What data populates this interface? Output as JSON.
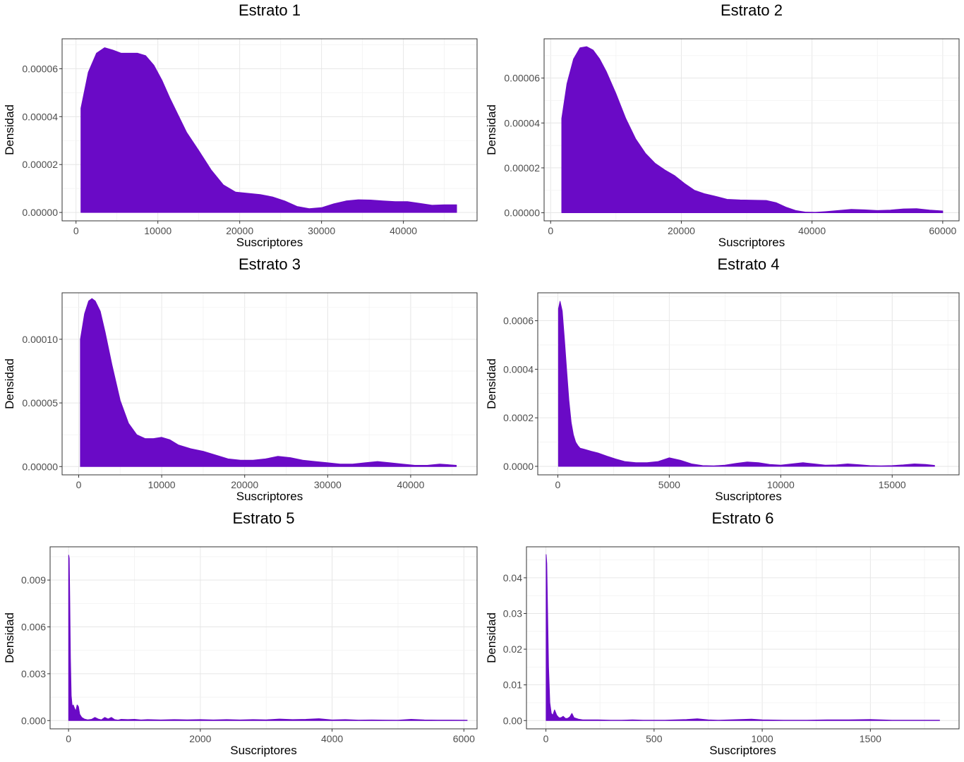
{
  "chart_data": [
    {
      "type": "area",
      "title": "Estrato 1",
      "xlabel": "Suscriptores",
      "ylabel": "Densidad",
      "fill_color": "#6a0ac6",
      "grid": true,
      "xlim": [
        -1700,
        49000
      ],
      "ylim": [
        -3.5e-06,
        7.25e-05
      ],
      "xticks": [
        0,
        10000,
        20000,
        30000,
        40000
      ],
      "xtick_labels": [
        "0",
        "10000",
        "20000",
        "30000",
        "40000"
      ],
      "yticks": [
        0,
        2e-05,
        4e-05,
        6e-05
      ],
      "ytick_labels": [
        "0.00000",
        "0.00002",
        "0.00004",
        "0.00006"
      ],
      "x": [
        600,
        1500,
        2500,
        3500,
        4500,
        5500,
        6500,
        7500,
        8500,
        9500,
        10500,
        11500,
        12500,
        13500,
        15000,
        16500,
        18000,
        19500,
        21000,
        22500,
        24000,
        25500,
        27000,
        28500,
        30000,
        31500,
        33000,
        34500,
        36000,
        37500,
        39000,
        40500,
        42000,
        43500,
        45000,
        46500
      ],
      "y": [
        4.35e-05,
        5.85e-05,
        6.65e-05,
        6.88e-05,
        6.78e-05,
        6.65e-05,
        6.65e-05,
        6.65e-05,
        6.55e-05,
        6.15e-05,
        5.52e-05,
        4.75e-05,
        4.05e-05,
        3.35e-05,
        2.58e-05,
        1.78e-05,
        1.15e-05,
        8.5e-06,
        8e-06,
        7.5e-06,
        6.5e-06,
        4.8e-06,
        2.5e-06,
        1.6e-06,
        2e-06,
        3.6e-06,
        4.8e-06,
        5.3e-06,
        5.2e-06,
        4.8e-06,
        4.5e-06,
        4.5e-06,
        3.8e-06,
        3e-06,
        3.2e-06,
        3.2e-06
      ]
    },
    {
      "type": "area",
      "title": "Estrato 2",
      "xlabel": "Suscriptores",
      "ylabel": "Densidad",
      "fill_color": "#6a0ac6",
      "grid": true,
      "xlim": [
        -1000,
        62500
      ],
      "ylim": [
        -3.6e-06,
        7.75e-05
      ],
      "xticks": [
        0,
        20000,
        40000,
        60000
      ],
      "xtick_labels": [
        "0",
        "20000",
        "40000",
        "60000"
      ],
      "yticks": [
        0,
        2e-05,
        4e-05,
        6e-05
      ],
      "ytick_labels": [
        "0.00000",
        "0.00002",
        "0.00004",
        "0.00006"
      ],
      "x": [
        1700,
        2500,
        3500,
        4500,
        5500,
        6500,
        7500,
        8500,
        10000,
        11500,
        13000,
        14500,
        16000,
        17500,
        19000,
        20500,
        22000,
        23500,
        25000,
        27000,
        29000,
        31000,
        33000,
        34500,
        36000,
        37500,
        39000,
        40500,
        42000,
        44000,
        46000,
        48000,
        50000,
        52000,
        54000,
        56000,
        58000,
        60000
      ],
      "y": [
        4.2e-05,
        5.75e-05,
        6.85e-05,
        7.35e-05,
        7.4e-05,
        7.25e-05,
        6.85e-05,
        6.3e-05,
        5.3e-05,
        4.2e-05,
        3.3e-05,
        2.65e-05,
        2.2e-05,
        1.9e-05,
        1.65e-05,
        1.3e-05,
        1e-05,
        8.5e-06,
        7.5e-06,
        6e-06,
        5.7e-06,
        5.6e-06,
        5.5e-06,
        4.5e-06,
        2.5e-06,
        1e-06,
        3e-07,
        2e-07,
        5e-07,
        1e-06,
        1.5e-06,
        1.3e-06,
        1e-06,
        1.2e-06,
        1.7e-06,
        1.8e-06,
        1.2e-06,
        8e-07
      ]
    },
    {
      "type": "area",
      "title": "Estrato 3",
      "xlabel": "Suscriptores",
      "ylabel": "Densidad",
      "fill_color": "#6a0ac6",
      "grid": true,
      "xlim": [
        -2000,
        48000
      ],
      "ylim": [
        -6.5e-06,
        0.0001365
      ],
      "xticks": [
        0,
        10000,
        20000,
        30000,
        40000
      ],
      "xtick_labels": [
        "0",
        "10000",
        "20000",
        "30000",
        "40000"
      ],
      "yticks": [
        0,
        5e-05,
        0.0001
      ],
      "ytick_labels": [
        "0.00000",
        "0.00005",
        "0.00010"
      ],
      "x": [
        200,
        700,
        1200,
        1600,
        2000,
        2600,
        3200,
        4000,
        5000,
        6000,
        7000,
        8000,
        9000,
        10000,
        11000,
        12000,
        13500,
        15000,
        16500,
        18000,
        19500,
        21000,
        22500,
        24000,
        25500,
        27000,
        28500,
        30000,
        31500,
        33000,
        34500,
        36000,
        37500,
        39000,
        40500,
        42000,
        43500,
        45500
      ],
      "y": [
        0.0001,
        0.00012,
        0.00013,
        0.000132,
        0.00013,
        0.000122,
        0.000105,
        8e-05,
        5.2e-05,
        3.4e-05,
        2.5e-05,
        2.2e-05,
        2.2e-05,
        2.3e-05,
        2.1e-05,
        1.7e-05,
        1.4e-05,
        1.2e-05,
        9e-06,
        6e-06,
        5e-06,
        5e-06,
        6e-06,
        8e-06,
        7e-06,
        5e-06,
        4e-06,
        3e-06,
        2e-06,
        2e-06,
        3e-06,
        4e-06,
        3e-06,
        2e-06,
        1e-06,
        1e-06,
        2e-06,
        1e-06
      ]
    },
    {
      "type": "area",
      "title": "Estrato 4",
      "xlabel": "Suscriptores",
      "ylabel": "Densidad",
      "fill_color": "#6a0ac6",
      "grid": true,
      "xlim": [
        -900,
        18000
      ],
      "ylim": [
        -3.5e-05,
        0.000715
      ],
      "xticks": [
        0,
        5000,
        10000,
        15000
      ],
      "xtick_labels": [
        "0",
        "5000",
        "10000",
        "15000"
      ],
      "yticks": [
        0,
        0.0002,
        0.0004,
        0.0006
      ],
      "ytick_labels": [
        "0.0000",
        "0.0002",
        "0.0004",
        "0.0006"
      ],
      "x": [
        30,
        100,
        200,
        300,
        400,
        500,
        600,
        700,
        800,
        900,
        1000,
        1200,
        1500,
        1800,
        2200,
        2600,
        3000,
        3500,
        4000,
        4500,
        5000,
        5500,
        6000,
        6500,
        7000,
        7500,
        8000,
        8500,
        9000,
        9500,
        10000,
        10500,
        11000,
        11500,
        12000,
        12500,
        13000,
        13500,
        14000,
        14500,
        15000,
        15500,
        16000,
        16500,
        16900
      ],
      "y": [
        0.00065,
        0.00068,
        0.00064,
        0.00052,
        0.00039,
        0.00027,
        0.00018,
        0.00013,
        0.0001,
        8.5e-05,
        7.5e-05,
        7e-05,
        6.2e-05,
        5.5e-05,
        4.2e-05,
        3e-05,
        2e-05,
        1.5e-05,
        1.5e-05,
        2e-05,
        3.5e-05,
        2.5e-05,
        1e-05,
        3e-06,
        2e-06,
        5e-06,
        1.2e-05,
        1.8e-05,
        1.5e-05,
        8e-06,
        5e-06,
        1e-05,
        1.5e-05,
        1e-05,
        5e-06,
        6e-06,
        1e-05,
        7e-06,
        3e-06,
        2e-06,
        3e-06,
        6e-06,
        1e-05,
        8e-06,
        4e-06
      ]
    },
    {
      "type": "area",
      "title": "Estrato 5",
      "xlabel": "Suscriptores",
      "ylabel": "Densidad",
      "fill_color": "#6a0ac6",
      "grid": true,
      "xlim": [
        -280,
        6200
      ],
      "ylim": [
        -0.00053,
        0.01113
      ],
      "xticks": [
        0,
        2000,
        4000,
        6000
      ],
      "xtick_labels": [
        "0",
        "2000",
        "4000",
        "6000"
      ],
      "yticks": [
        0,
        0.003,
        0.006,
        0.009
      ],
      "ytick_labels": [
        "0.000",
        "0.003",
        "0.006",
        "0.009"
      ],
      "x": [
        2,
        10,
        18,
        28,
        40,
        55,
        70,
        90,
        110,
        130,
        150,
        170,
        200,
        240,
        290,
        350,
        400,
        450,
        500,
        550,
        600,
        650,
        700,
        750,
        800,
        900,
        1000,
        1100,
        1200,
        1400,
        1600,
        1800,
        2000,
        2200,
        2400,
        2600,
        2800,
        3000,
        3200,
        3400,
        3600,
        3800,
        4000,
        4200,
        4400,
        4600,
        4800,
        5000,
        5200,
        5400,
        5600,
        5800,
        6050
      ],
      "y": [
        0.0106,
        0.0104,
        0.008,
        0.004,
        0.0016,
        0.0009,
        0.001,
        0.0008,
        0.0006,
        0.001,
        0.0009,
        0.0004,
        0.0002,
        0.0001,
        5e-05,
        8e-05,
        0.0002,
        0.0001,
        5e-05,
        0.0002,
        0.0001,
        0.0002,
        6e-05,
        3e-05,
        8e-05,
        6e-05,
        8e-05,
        4e-05,
        6e-05,
        4e-05,
        6e-05,
        5e-05,
        6e-05,
        4e-05,
        6e-05,
        4e-05,
        6e-05,
        5e-05,
        0.0001,
        6e-05,
        8e-05,
        0.00012,
        4e-05,
        6e-05,
        3e-05,
        4e-05,
        3e-05,
        2e-05,
        8e-05,
        4e-05,
        3e-05,
        3e-05,
        2e-05
      ]
    },
    {
      "type": "area",
      "title": "Estrato 6",
      "xlabel": "Suscriptores",
      "ylabel": "Densidad",
      "fill_color": "#6a0ac6",
      "grid": true,
      "xlim": [
        -90,
        1910
      ],
      "ylim": [
        -0.00232,
        0.04868
      ],
      "xticks": [
        0,
        500,
        1000,
        1500
      ],
      "xtick_labels": [
        "0",
        "500",
        "1000",
        "1500"
      ],
      "yticks": [
        0,
        0.01,
        0.02,
        0.03,
        0.04
      ],
      "ytick_labels": [
        "0.00",
        "0.01",
        "0.02",
        "0.03",
        "0.04"
      ],
      "x": [
        1,
        4,
        8,
        12,
        18,
        25,
        32,
        40,
        50,
        60,
        70,
        80,
        90,
        100,
        110,
        120,
        130,
        150,
        170,
        200,
        240,
        300,
        350,
        400,
        450,
        500,
        550,
        600,
        650,
        700,
        750,
        800,
        850,
        900,
        950,
        1000,
        1100,
        1200,
        1300,
        1400,
        1500,
        1600,
        1700,
        1820
      ],
      "y": [
        0.0465,
        0.044,
        0.03,
        0.015,
        0.005,
        0.002,
        0.0015,
        0.003,
        0.0015,
        0.0008,
        0.0008,
        0.0012,
        0.0006,
        0.0006,
        0.001,
        0.002,
        0.0008,
        0.0004,
        0.0002,
        0.0002,
        0.0002,
        0.0001,
        0.0001,
        0.0002,
        0.0001,
        0.0001,
        0.0001,
        0.0002,
        0.0003,
        0.0005,
        0.0002,
        0.0001,
        0.0002,
        0.0003,
        0.0004,
        0.0002,
        0.0001,
        0.0001,
        0.0002,
        0.0002,
        0.0003,
        0.0001,
        0.0001,
        0.0001
      ]
    }
  ]
}
